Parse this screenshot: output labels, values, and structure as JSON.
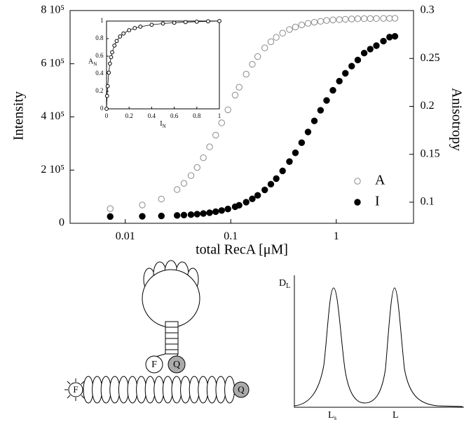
{
  "chart_data": [
    {
      "type": "scatter",
      "xlabel": "total RecA [μM]",
      "ylabel": "Intensity",
      "y2label": "Anisotropy",
      "xscale": "log",
      "xlim": [
        0.003,
        5.4
      ],
      "xticks": [
        0.01,
        0.1,
        1
      ],
      "ylim": [
        0,
        800000
      ],
      "yticks": [
        0,
        {
          "value": 200000,
          "label": "2 10⁵"
        },
        {
          "value": 400000,
          "label": "4 10⁵"
        },
        {
          "value": 600000,
          "label": "6 10⁵"
        },
        {
          "value": 800000,
          "label": "8 10⁵"
        }
      ],
      "y2lim": [
        0.078,
        0.3
      ],
      "y2ticks": [
        0.1,
        0.15,
        0.2,
        0.25,
        0.3
      ],
      "x": [
        0.0072,
        0.0145,
        0.022,
        0.031,
        0.036,
        0.042,
        0.048,
        0.055,
        0.063,
        0.072,
        0.082,
        0.094,
        0.11,
        0.12,
        0.14,
        0.16,
        0.18,
        0.21,
        0.24,
        0.27,
        0.31,
        0.36,
        0.41,
        0.47,
        0.54,
        0.62,
        0.71,
        0.81,
        0.93,
        1.07,
        1.22,
        1.4,
        1.6,
        1.84,
        2.1,
        2.4,
        2.8,
        3.2,
        3.6
      ],
      "series": [
        {
          "name": "A",
          "axis": "y2",
          "marker": "open",
          "color": "#8a8a8a",
          "values": [
            0.0933,
            0.0971,
            0.1033,
            0.1132,
            0.1196,
            0.1278,
            0.1362,
            0.1464,
            0.1578,
            0.17,
            0.1828,
            0.1964,
            0.2118,
            0.22,
            0.2336,
            0.244,
            0.252,
            0.261,
            0.2674,
            0.272,
            0.2764,
            0.2802,
            0.2828,
            0.285,
            0.2866,
            0.2878,
            0.2888,
            0.2896,
            0.2902,
            0.2905,
            0.2909,
            0.2912,
            0.2914,
            0.2915,
            0.2916,
            0.2917,
            0.2918,
            0.2918,
            0.2919
          ]
        },
        {
          "name": "I",
          "marker": "filled",
          "color": "#000000",
          "values": [
            25400,
            26300,
            27500,
            29500,
            30900,
            32500,
            34500,
            36800,
            39900,
            43600,
            48000,
            53800,
            62100,
            67700,
            79400,
            91900,
            105000,
            125700,
            147000,
            168000,
            197000,
            232000,
            265000,
            303000,
            343500,
            385000,
            425000,
            462000,
            500000,
            534500,
            564000,
            591000,
            614000,
            640000,
            655000,
            668000,
            685000,
            700000,
            703000
          ]
        }
      ],
      "legend": "lower right"
    },
    {
      "type": "scatter",
      "xlabel": "I",
      "xlabel_sub": "N",
      "ylabel": "A",
      "ylabel_sub": "N",
      "xlim": [
        0,
        1
      ],
      "xticks": [
        0,
        0.2,
        0.4,
        0.6,
        0.8,
        1
      ],
      "ylim": [
        0,
        1
      ],
      "yticks": [
        0,
        0.2,
        0.4,
        0.6,
        0.8,
        1
      ],
      "x": [
        0,
        0.005,
        0.01,
        0.02,
        0.03,
        0.04,
        0.05,
        0.07,
        0.09,
        0.12,
        0.15,
        0.2,
        0.25,
        0.3,
        0.4,
        0.5,
        0.6,
        0.7,
        0.8,
        0.9,
        1
      ],
      "values": [
        0,
        0.147,
        0.258,
        0.412,
        0.515,
        0.589,
        0.644,
        0.721,
        0.773,
        0.824,
        0.858,
        0.896,
        0.92,
        0.936,
        0.958,
        0.972,
        0.981,
        0.988,
        0.993,
        0.997,
        1
      ],
      "marker": "open",
      "line": true,
      "color": "#000000"
    }
  ],
  "diagram": {
    "hairpin": {
      "fluorophore": "F",
      "quencher": "Q"
    },
    "filament": {
      "fluorophore": "F",
      "quencher": "Q"
    },
    "distribution": {
      "ylabel": "D",
      "ylabel_sub": "L",
      "xlabels": [
        {
          "text": "L",
          "sub": "s"
        },
        {
          "text": "L"
        }
      ]
    }
  }
}
